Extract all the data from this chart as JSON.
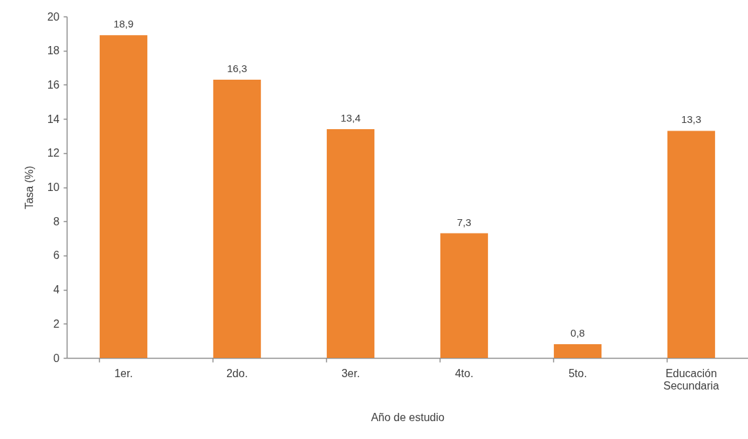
{
  "chart_data": {
    "type": "bar",
    "xlabel": "Año de estudio",
    "ylabel": "Tasa (%)",
    "categories": [
      "1er.",
      "2do.",
      "3er.",
      "4to.",
      "5to.",
      "Educación Secundaria"
    ],
    "values": [
      18.9,
      16.3,
      13.4,
      7.3,
      0.8,
      13.3
    ],
    "value_labels": [
      "18,9",
      "16,3",
      "13,4",
      "7,3",
      "0,8",
      "13,3"
    ],
    "color": "#ee8530",
    "ylim": [
      0,
      20
    ],
    "yticks": [
      0,
      2,
      4,
      6,
      8,
      10,
      12,
      14,
      16,
      18,
      20
    ],
    "grid": false
  }
}
